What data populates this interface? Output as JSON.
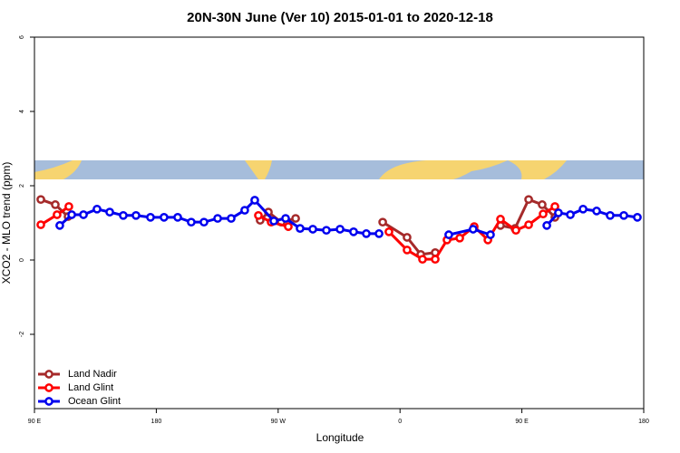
{
  "chart_data": {
    "type": "line",
    "title": "20N-30N June (Ver 10)   2015-01-01 to 2020-12-18",
    "x_label": "Longitude",
    "y_label": "XCO2 - MLO trend (ppm)",
    "xlim": [
      90,
      540
    ],
    "xticks": [
      {
        "value": 90,
        "label": "90 E"
      },
      180,
      {
        "value": 270,
        "label": "90 W"
      },
      {
        "value": 360,
        "label": "0"
      },
      {
        "value": 450,
        "label": "90 E"
      },
      {
        "value": 540,
        "label": "180"
      }
    ],
    "ylim": [
      -4,
      6
    ],
    "yticks": [
      -2,
      0,
      2,
      4,
      6
    ],
    "legend": "bottomleft",
    "series": [
      {
        "name": "Land Nadir",
        "color": "#a52a2a",
        "x": [
          94.7,
          105.4,
          114.8,
          null,
          256.7,
          262.8,
          272.2,
          282.9,
          null,
          347.2,
          365.2,
          375.3,
          386,
          null,
          434.2,
          444.9,
          455,
          465,
          474.4
        ],
        "values": [
          1.63,
          1.49,
          1.17,
          null,
          1.07,
          1.29,
          1.02,
          1.12,
          null,
          1.02,
          0.61,
          0.15,
          0.2,
          null,
          0.93,
          0.85,
          1.63,
          1.49,
          1.15
        ]
      },
      {
        "name": "Land Glint",
        "color": "#ff0000",
        "x": [
          94.7,
          106.7,
          115.4,
          null,
          255.4,
          264.8,
          277.5,
          null,
          351.8,
          365.2,
          376.6,
          386,
          394.7,
          404.1,
          414.8,
          424.9,
          434.2,
          445.6,
          455,
          465.7,
          474.4
        ],
        "values": [
          0.95,
          1.22,
          1.44,
          null,
          1.2,
          1.02,
          0.9,
          null,
          0.76,
          0.27,
          0.02,
          0.02,
          0.54,
          0.59,
          0.9,
          0.54,
          1.1,
          0.8,
          0.95,
          1.24,
          1.44
        ]
      },
      {
        "name": "Ocean Glint",
        "color": "#0000ee",
        "x": [
          108.7,
          117.5,
          126.2,
          136.2,
          145.6,
          155.6,
          165,
          175.7,
          185.7,
          195.8,
          205.8,
          215.2,
          225.3,
          235.3,
          245.3,
          252.7,
          266.8,
          275.5,
          286.2,
          295.6,
          305.6,
          315.7,
          325.7,
          335.1,
          344.5,
          null,
          396,
          414,
          426.8,
          null,
          468.4,
          477,
          485.8,
          495.2,
          505.2,
          515.2,
          525.3,
          535.3
        ],
        "values": [
          0.93,
          1.22,
          1.22,
          1.37,
          1.29,
          1.2,
          1.2,
          1.15,
          1.15,
          1.15,
          1.02,
          1.02,
          1.12,
          1.12,
          1.34,
          1.61,
          1.05,
          1.12,
          0.85,
          0.83,
          0.8,
          0.83,
          0.76,
          0.71,
          0.71,
          null,
          0.68,
          0.83,
          0.68,
          null,
          0.93,
          1.27,
          1.22,
          1.37,
          1.32,
          1.2,
          1.2,
          1.15
        ]
      }
    ]
  }
}
